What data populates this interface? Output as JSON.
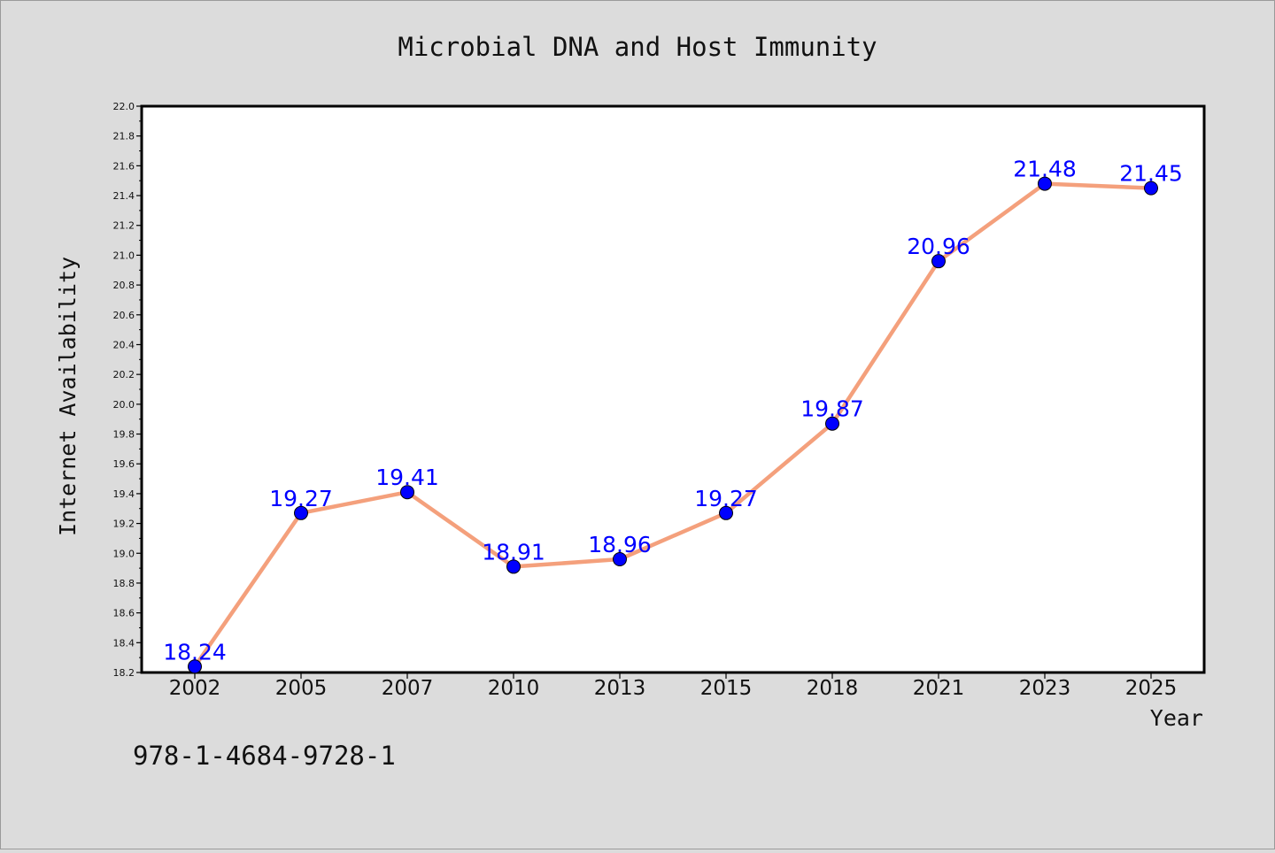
{
  "chart_data": {
    "type": "line",
    "title": "Microbial DNA and Host Immunity",
    "xlabel": "Year",
    "ylabel": "Internet Availability",
    "categories": [
      "2002",
      "2005",
      "2007",
      "2010",
      "2013",
      "2015",
      "2018",
      "2021",
      "2023",
      "2025"
    ],
    "series": [
      {
        "values": [
          18.24,
          19.27,
          19.41,
          18.91,
          18.96,
          19.27,
          19.87,
          20.96,
          21.48,
          21.45
        ],
        "line_color": "#f4a07c",
        "marker_color": "#0000ff"
      }
    ],
    "ylim": [
      18.2,
      22.0
    ],
    "y_ticks": [
      "18.2",
      "18.4",
      "18.6",
      "18.8",
      "19.0",
      "19.2",
      "19.4",
      "19.6",
      "19.8",
      "20.0",
      "20.2",
      "20.4",
      "20.6",
      "20.8",
      "21.0",
      "21.2",
      "21.4",
      "21.6",
      "21.8",
      "22.0"
    ],
    "data_labels": [
      "18.24",
      "19.27",
      "19.41",
      "18.91",
      "18.96",
      "19.27",
      "19.87",
      "20.96",
      "21.48",
      "21.45"
    ],
    "grid": false,
    "legend": "none"
  },
  "footnote": "978-1-4684-9728-1",
  "colors": {
    "background": "#dcdcdc",
    "plot_background": "#ffffff",
    "line": "#f4a07c",
    "marker": "#0000ff",
    "data_label": "#0000ff"
  }
}
